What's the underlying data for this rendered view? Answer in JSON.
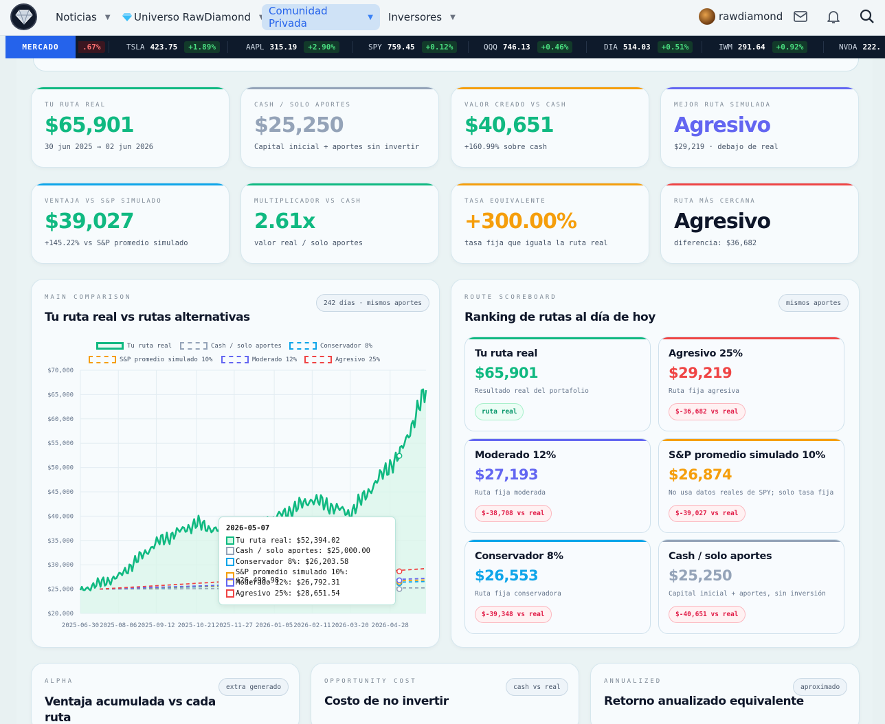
{
  "nav": {
    "items": [
      {
        "label": "Noticias"
      },
      {
        "label": "Universo RawDiamond",
        "icon": "gem-icon"
      },
      {
        "label": "Comunidad Privada",
        "active": true
      },
      {
        "label": "Inversores"
      }
    ],
    "username": "rawdiamond"
  },
  "ticker": {
    "label": "MERCADO",
    "partial_change": ".67%",
    "items": [
      {
        "symbol": "TSLA",
        "price": "423.75",
        "change": "+1.89%"
      },
      {
        "symbol": "AAPL",
        "price": "315.19",
        "change": "+2.90%"
      },
      {
        "symbol": "SPY",
        "price": "759.45",
        "change": "+0.12%"
      },
      {
        "symbol": "QQQ",
        "price": "746.13",
        "change": "+0.46%"
      },
      {
        "symbol": "DIA",
        "price": "514.03",
        "change": "+0.51%"
      },
      {
        "symbol": "IWM",
        "price": "291.64",
        "change": "+0.92%"
      },
      {
        "symbol": "NVDA",
        "price": "222."
      }
    ]
  },
  "stats": [
    {
      "label": "TU RUTA REAL",
      "value": "$65,901",
      "sub": "30 jun 2025 → 02 jun 2026",
      "color": "#10b981",
      "bar": "#10b981"
    },
    {
      "label": "CASH / SOLO APORTES",
      "value": "$25,250",
      "sub": "Capital inicial + aportes sin invertir",
      "color": "#94a3b8",
      "bar": "#94a3b8"
    },
    {
      "label": "VALOR CREADO VS CASH",
      "value": "$40,651",
      "sub": "+160.99% sobre cash",
      "color": "#10b981",
      "bar": "#f59e0b"
    },
    {
      "label": "MEJOR RUTA SIMULADA",
      "value": "Agresivo",
      "sub": "$29,219 · debajo de real",
      "color": "#6366f1",
      "bar": "#6366f1"
    },
    {
      "label": "VENTAJA VS S&P SIMULADO",
      "value": "$39,027",
      "sub": "+145.22% vs S&P promedio simulado",
      "color": "#10b981",
      "bar": "#0ea5e9"
    },
    {
      "label": "MULTIPLICADOR VS CASH",
      "value": "2.61x",
      "sub": "valor real / solo aportes",
      "color": "#10b981",
      "bar": "#10b981"
    },
    {
      "label": "TASA EQUIVALENTE",
      "value": "+300.00%",
      "sub": "tasa fija que iguala la ruta real",
      "color": "#f59e0b",
      "bar": "#f59e0b"
    },
    {
      "label": "RUTA MÁS CERCANA",
      "value": "Agresivo",
      "sub": "diferencia: $36,682",
      "color": "#0f172a",
      "bar": "#ef4444"
    }
  ],
  "comparison": {
    "eyebrow": "MAIN COMPARISON",
    "title": "Tu ruta real vs rutas alternativas",
    "pill": "242 días · mismos aportes"
  },
  "chart_data": {
    "type": "line",
    "title": "",
    "xlabel": "",
    "ylabel": "",
    "ylim": [
      20000,
      70000
    ],
    "y_ticks": [
      "$70,000",
      "$65,000",
      "$60,000",
      "$55,000",
      "$50,000",
      "$45,000",
      "$40,000",
      "$35,000",
      "$30,000",
      "$25,000",
      "$20,000"
    ],
    "x_ticks": [
      "2025-06-30",
      "2025-08-06",
      "2025-09-12",
      "2025-10-21",
      "2025-11-27",
      "2026-01-05",
      "2026-02-11",
      "2026-03-20",
      "2026-04-28"
    ],
    "grid": true,
    "legend_position": "top",
    "series": [
      {
        "name": "Tu ruta real",
        "color": "#10b981",
        "style": "solid-area",
        "x": [
          "2025-06-30",
          "2025-08-06",
          "2025-09-12",
          "2025-10-21",
          "2025-11-27",
          "2026-01-05",
          "2026-02-11",
          "2026-03-20",
          "2026-04-28",
          "2026-05-07",
          "2026-06-02"
        ],
        "values": [
          24800,
          27500,
          34500,
          38500,
          36000,
          39500,
          43500,
          40500,
          50500,
          52394.02,
          65901
        ]
      },
      {
        "name": "Cash / solo aportes",
        "color": "#94a3b8",
        "style": "dashed",
        "start": 25000,
        "end": 25250
      },
      {
        "name": "Conservador 8%",
        "color": "#0ea5e9",
        "style": "dashed",
        "start": 25000,
        "end": 26553
      },
      {
        "name": "S&P promedio simulado 10%",
        "color": "#f59e0b",
        "style": "dashed",
        "start": 25000,
        "end": 26874
      },
      {
        "name": "Moderado 12%",
        "color": "#6366f1",
        "style": "dashed",
        "start": 25000,
        "end": 27193
      },
      {
        "name": "Agresivo 25%",
        "color": "#ef4444",
        "style": "dashed",
        "start": 25000,
        "end": 29219
      }
    ],
    "tooltip": {
      "date": "2026-05-07",
      "rows": [
        {
          "text": "Tu ruta real: $52,394.02",
          "color": "#10b981",
          "filled": true
        },
        {
          "text": "Cash / solo aportes: $25,000.00",
          "color": "#94a3b8"
        },
        {
          "text": "Conservador 8%: $26,203.58",
          "color": "#0ea5e9"
        },
        {
          "text": "S&P promedio simulado 10%: $26,498.98",
          "color": "#f59e0b"
        },
        {
          "text": "Moderado 12%: $26,792.31",
          "color": "#6366f1"
        },
        {
          "text": "Agresivo 25%: $28,651.54",
          "color": "#ef4444"
        }
      ]
    }
  },
  "scoreboard": {
    "eyebrow": "ROUTE SCOREBOARD",
    "title": "Ranking de rutas al día de hoy",
    "pill": "mismos aportes",
    "routes": [
      {
        "name": "Tu ruta real",
        "value": "$65,901",
        "desc": "Resultado real del portafolio",
        "tag": "ruta real",
        "tag_type": "green",
        "color": "#10b981"
      },
      {
        "name": "Agresivo 25%",
        "value": "$29,219",
        "desc": "Ruta fija agresiva",
        "tag": "$-36,682 vs real",
        "tag_type": "red",
        "color": "#ef4444"
      },
      {
        "name": "Moderado 12%",
        "value": "$27,193",
        "desc": "Ruta fija moderada",
        "tag": "$-38,708 vs real",
        "tag_type": "red",
        "color": "#6366f1"
      },
      {
        "name": "S&P promedio simulado 10%",
        "value": "$26,874",
        "desc": "No usa datos reales de SPY; solo tasa fija",
        "tag": "$-39,027 vs real",
        "tag_type": "red",
        "color": "#f59e0b"
      },
      {
        "name": "Conservador 8%",
        "value": "$26,553",
        "desc": "Ruta fija conservadora",
        "tag": "$-39,348 vs real",
        "tag_type": "red",
        "color": "#0ea5e9"
      },
      {
        "name": "Cash / solo aportes",
        "value": "$25,250",
        "desc": "Capital inicial + aportes, sin inversión",
        "tag": "$-40,651 vs real",
        "tag_type": "red",
        "color": "#94a3b8"
      }
    ]
  },
  "bottom": [
    {
      "eyebrow": "ALPHA",
      "title": "Ventaja acumulada vs cada ruta",
      "pill": "extra generado"
    },
    {
      "eyebrow": "OPPORTUNITY COST",
      "title": "Costo de no invertir",
      "pill": "cash vs real"
    },
    {
      "eyebrow": "ANNUALIZED",
      "title": "Retorno anualizado equivalente",
      "pill": "aproximado"
    }
  ]
}
